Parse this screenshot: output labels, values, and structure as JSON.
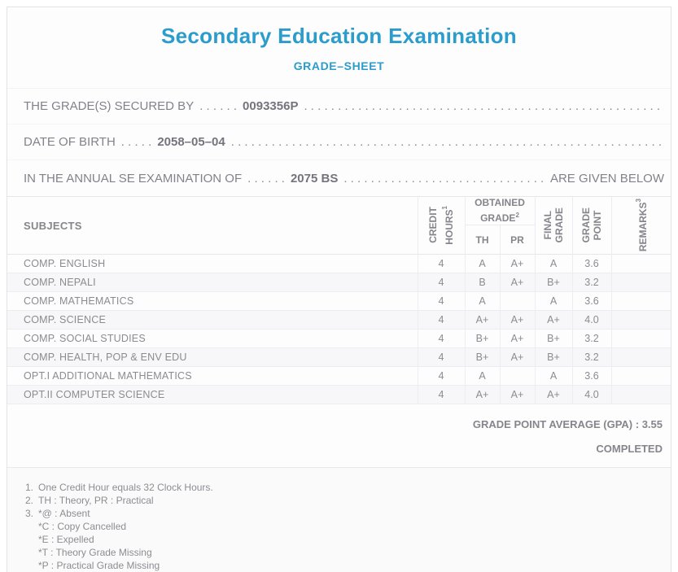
{
  "colors": {
    "accent_title": "#2b9ccb",
    "body_text": "#82828a",
    "table_text": "#8b8b90"
  },
  "header": {
    "title": "Secondary Education Examination",
    "subtitle": "GRADE–SHEET"
  },
  "info_rows": [
    {
      "prefix": "THE GRADE(S) SECURED BY",
      "dots": ". . . . . .",
      "value": "0093356P",
      "suffix": ""
    },
    {
      "prefix": "DATE OF BIRTH",
      "dots": ". . . . .",
      "value": "2058–05–04",
      "suffix": ""
    },
    {
      "prefix": "IN THE ANNUAL SE EXAMINATION OF",
      "dots": ". . . . . .",
      "value": "2075 BS",
      "suffix": "ARE GIVEN BELOW"
    }
  ],
  "leader_dots": ". . . . . . . . . . . . . . . . . . . . . . . . . . . . . . . . . . . . . . . . . . . . . . . . . . . . . . . . . . . . . . . . . . . . . . . . . . . . . . . . . . . . . . . . . . . . . . . .",
  "table": {
    "headers": {
      "subjects": "SUBJECTS",
      "credit_hours": {
        "line1": "CREDIT",
        "line2": "HOURS",
        "sup": "1"
      },
      "obtained_grade": {
        "line1": "OBTAINED",
        "line2": "GRADE",
        "sup": "2"
      },
      "th": "TH",
      "pr": "PR",
      "final_grade": {
        "line1": "FINAL",
        "line2": "GRADE"
      },
      "grade_point": {
        "line1": "GRADE",
        "line2": "POINT"
      },
      "remarks": {
        "label": "REMARKS",
        "sup": "3"
      }
    },
    "rows": [
      {
        "subject": "COMP. ENGLISH",
        "credit": "4",
        "th": "A",
        "pr": "A+",
        "final": "A",
        "gp": "3.6",
        "remarks": ""
      },
      {
        "subject": "COMP. NEPALI",
        "credit": "4",
        "th": "B",
        "pr": "A+",
        "final": "B+",
        "gp": "3.2",
        "remarks": ""
      },
      {
        "subject": "COMP. MATHEMATICS",
        "credit": "4",
        "th": "A",
        "pr": "",
        "final": "A",
        "gp": "3.6",
        "remarks": ""
      },
      {
        "subject": "COMP. SCIENCE",
        "credit": "4",
        "th": "A+",
        "pr": "A+",
        "final": "A+",
        "gp": "4.0",
        "remarks": ""
      },
      {
        "subject": "COMP. SOCIAL STUDIES",
        "credit": "4",
        "th": "B+",
        "pr": "A+",
        "final": "B+",
        "gp": "3.2",
        "remarks": ""
      },
      {
        "subject": "COMP. HEALTH, POP & ENV EDU",
        "credit": "4",
        "th": "B+",
        "pr": "A+",
        "final": "B+",
        "gp": "3.2",
        "remarks": ""
      },
      {
        "subject": "OPT.I ADDITIONAL MATHEMATICS",
        "credit": "4",
        "th": "A",
        "pr": "",
        "final": "A",
        "gp": "3.6",
        "remarks": ""
      },
      {
        "subject": "OPT.II COMPUTER SCIENCE",
        "credit": "4",
        "th": "A+",
        "pr": "A+",
        "final": "A+",
        "gp": "4.0",
        "remarks": ""
      }
    ]
  },
  "summary": {
    "gpa_label": "GRADE POINT AVERAGE (GPA) :",
    "gpa_value": "3.55",
    "status": "COMPLETED"
  },
  "footnotes": [
    {
      "num": "1.",
      "text": "One Credit Hour equals 32 Clock Hours.",
      "sublines": []
    },
    {
      "num": "2.",
      "text": "TH : Theory, PR : Practical",
      "sublines": []
    },
    {
      "num": "3.",
      "text": "*@ : Absent",
      "sublines": [
        "*C : Copy Cancelled",
        "*E : Expelled",
        "*T : Theory Grade Missing",
        "*P : Practical Grade Missing"
      ]
    }
  ]
}
